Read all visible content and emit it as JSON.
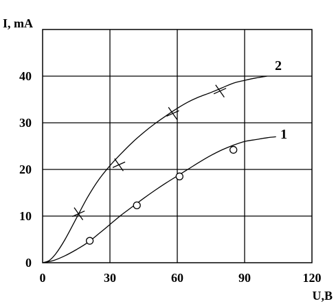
{
  "chart_data": {
    "type": "line",
    "title": "",
    "xlabel": "U,B",
    "ylabel": "I, mA",
    "xlim": [
      0,
      120
    ],
    "ylim": [
      0,
      50
    ],
    "x_ticks": [
      0,
      30,
      60,
      90,
      120
    ],
    "y_ticks": [
      0,
      10,
      20,
      30,
      40
    ],
    "x_tick_labels": [
      "0",
      "30",
      "60",
      "90",
      "120"
    ],
    "y_tick_labels": [
      "0",
      "10",
      "20",
      "30",
      "40"
    ],
    "grid": true,
    "legend": "none",
    "series": [
      {
        "name": "1",
        "marker": "circle",
        "curve": [
          [
            0,
            0
          ],
          [
            5,
            0.5
          ],
          [
            10,
            1.5
          ],
          [
            15,
            2.8
          ],
          [
            20,
            4.3
          ],
          [
            25,
            6.2
          ],
          [
            30,
            8.2
          ],
          [
            35,
            10.2
          ],
          [
            40,
            12.0
          ],
          [
            45,
            13.8
          ],
          [
            50,
            15.5
          ],
          [
            55,
            17.1
          ],
          [
            60,
            18.6
          ],
          [
            65,
            20.1
          ],
          [
            70,
            21.6
          ],
          [
            75,
            23.0
          ],
          [
            80,
            24.2
          ],
          [
            85,
            25.2
          ],
          [
            90,
            26.0
          ],
          [
            95,
            26.4
          ],
          [
            100,
            26.8
          ],
          [
            104,
            27.0
          ]
        ],
        "markers": [
          [
            21,
            4.7
          ],
          [
            42,
            12.3
          ],
          [
            61,
            18.5
          ],
          [
            85,
            24.2
          ]
        ]
      },
      {
        "name": "2",
        "marker": "x",
        "curve": [
          [
            0,
            0
          ],
          [
            3,
            0.5
          ],
          [
            6,
            2
          ],
          [
            10,
            5
          ],
          [
            15,
            9.5
          ],
          [
            20,
            14
          ],
          [
            25,
            17.8
          ],
          [
            30,
            20.8
          ],
          [
            35,
            23.4
          ],
          [
            40,
            25.8
          ],
          [
            45,
            27.9
          ],
          [
            50,
            29.8
          ],
          [
            55,
            31.5
          ],
          [
            60,
            33.1
          ],
          [
            65,
            34.5
          ],
          [
            70,
            35.6
          ],
          [
            75,
            36.5
          ],
          [
            80,
            37.5
          ],
          [
            85,
            38.5
          ],
          [
            90,
            39.1
          ],
          [
            95,
            39.6
          ],
          [
            100,
            40
          ]
        ],
        "markers": [
          [
            16,
            10.5
          ],
          [
            34,
            21
          ],
          [
            58,
            32
          ],
          [
            79,
            36.8
          ]
        ]
      }
    ]
  }
}
